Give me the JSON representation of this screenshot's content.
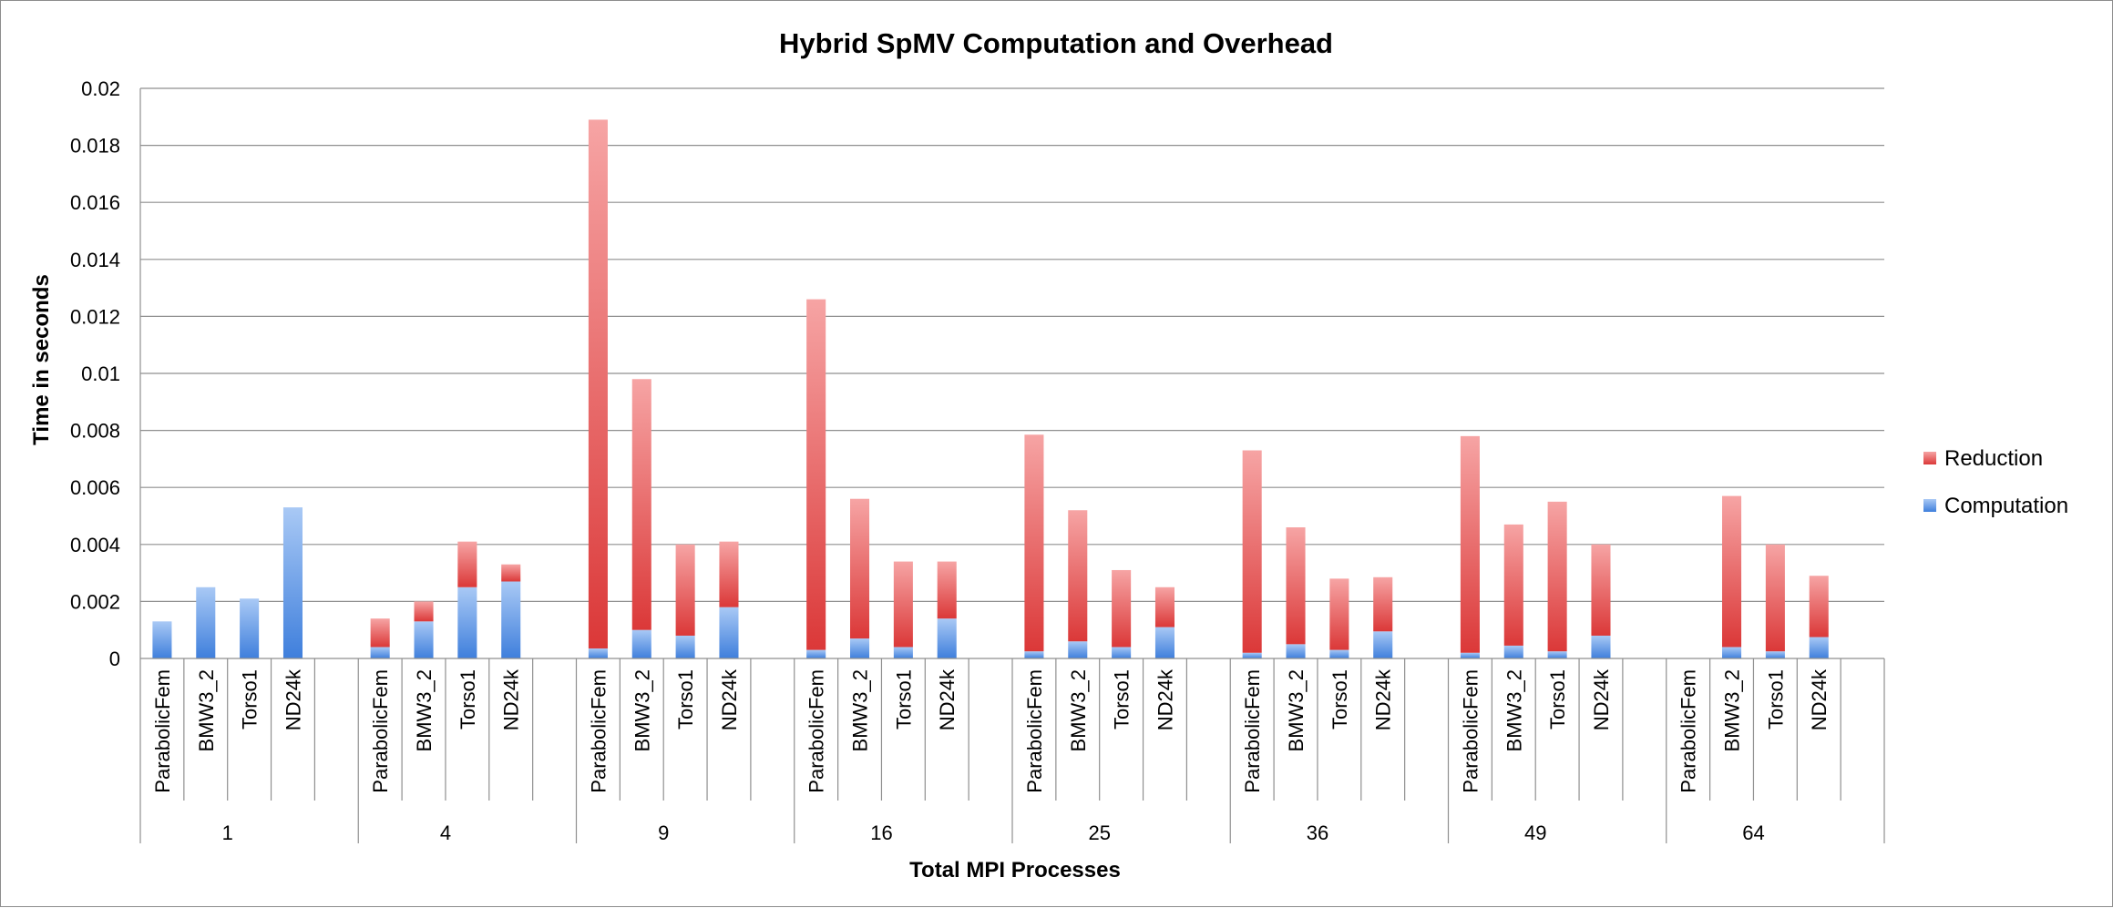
{
  "chart_data": {
    "type": "bar",
    "stacked": true,
    "title": "Hybrid SpMV Computation and Overhead",
    "xlabel": "Total MPI Processes",
    "ylabel": "Time in seconds",
    "ylim": [
      0,
      0.02
    ],
    "yticks": [
      "0",
      "0.002",
      "0.004",
      "0.006",
      "0.008",
      "0.01",
      "0.012",
      "0.014",
      "0.016",
      "0.018",
      "0.02"
    ],
    "grid": true,
    "legend_position": "right",
    "matrices": [
      "ParabolicFem",
      "BMW3_2",
      "Torso1",
      "ND24k"
    ],
    "groups": [
      "1",
      "4",
      "9",
      "16",
      "25",
      "36",
      "49",
      "64"
    ],
    "series": [
      {
        "name": "Computation",
        "color": "#4a86e8",
        "values": [
          [
            0.0013,
            0.0025,
            0.0021,
            0.0053
          ],
          [
            0.0004,
            0.0013,
            0.0025,
            0.0027
          ],
          [
            0.00035,
            0.001,
            0.0008,
            0.0018
          ],
          [
            0.0003,
            0.0007,
            0.0004,
            0.0014
          ],
          [
            0.00025,
            0.0006,
            0.0004,
            0.0011
          ],
          [
            0.0002,
            0.0005,
            0.0003,
            0.00095
          ],
          [
            0.0002,
            0.00045,
            0.00025,
            0.0008
          ],
          [
            null,
            0.0004,
            0.00025,
            0.00075
          ]
        ]
      },
      {
        "name": "Reduction",
        "color": "#e06666",
        "values": [
          [
            0,
            0,
            0,
            0
          ],
          [
            0.001,
            0.0007,
            0.0016,
            0.0006
          ],
          [
            0.01855,
            0.0088,
            0.0032,
            0.0023
          ],
          [
            0.0123,
            0.0049,
            0.003,
            0.002
          ],
          [
            0.0076,
            0.0046,
            0.0027,
            0.0014
          ],
          [
            0.0071,
            0.0041,
            0.0025,
            0.0019
          ],
          [
            0.0076,
            0.00425,
            0.00525,
            0.0032
          ],
          [
            null,
            0.0053,
            0.00375,
            0.00215
          ]
        ]
      }
    ]
  }
}
